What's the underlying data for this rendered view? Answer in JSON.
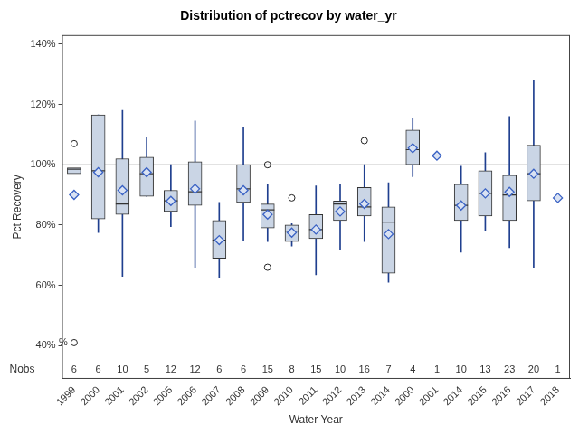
{
  "chart_data": {
    "type": "boxplot",
    "title": "Distribution of pctrecov by water_yr",
    "x_label": "Water Year",
    "y_label": "Pct Recovery",
    "categories": [
      "1999",
      "2000",
      "2001",
      "2002",
      "2005",
      "2006",
      "2007",
      "2008",
      "2009",
      "2010",
      "2011",
      "2012",
      "2013",
      "2014",
      "2000",
      "2001",
      "2014",
      "2015",
      "2016",
      "2017",
      "2018"
    ],
    "stats": {
      "q1": [
        97,
        82,
        83.5,
        89.5,
        84.5,
        86.5,
        69,
        87.5,
        79,
        74.5,
        75.5,
        81.5,
        83,
        64,
        100,
        null,
        81.5,
        83,
        81.5,
        88,
        null
      ],
      "median": [
        98.5,
        98,
        87,
        97,
        88,
        91,
        75,
        92,
        85,
        78,
        78.5,
        87,
        86,
        81,
        105,
        null,
        86.5,
        90.5,
        90,
        97,
        null
      ],
      "q3": [
        99,
        116.5,
        102,
        102.5,
        91.5,
        101,
        81.5,
        100,
        87,
        80,
        83.5,
        88,
        92.5,
        86,
        111.5,
        null,
        93.5,
        98,
        96.5,
        106.5,
        null
      ],
      "mean": [
        90,
        97.5,
        91.5,
        97.5,
        88,
        92,
        75,
        91.5,
        83.5,
        77.5,
        78.5,
        84.5,
        87,
        77,
        105.5,
        103,
        86.5,
        90.5,
        91,
        97,
        89
      ],
      "whisker_low": [
        null,
        77.5,
        63,
        89.5,
        79.5,
        66,
        62.5,
        75,
        74.5,
        73,
        63.5,
        72,
        74.5,
        61,
        96,
        null,
        71,
        78,
        72.5,
        66,
        null
      ],
      "whisker_high": [
        null,
        116.5,
        118,
        109,
        100,
        114.5,
        87.5,
        112.5,
        93.5,
        80.5,
        93,
        93.5,
        100,
        94,
        115.5,
        null,
        99.5,
        104,
        116,
        128,
        null
      ],
      "outliers": [
        [
          107,
          41
        ],
        [],
        [],
        [],
        [],
        [],
        [],
        [],
        [
          100,
          66
        ],
        [
          89
        ],
        [],
        [],
        [
          108
        ],
        [],
        [],
        [],
        [],
        [],
        [],
        [],
        []
      ]
    },
    "nobs_label": "Nobs",
    "nobs": [
      6,
      6,
      10,
      5,
      12,
      12,
      6,
      6,
      15,
      8,
      15,
      10,
      16,
      7,
      4,
      1,
      10,
      13,
      23,
      20,
      1
    ],
    "reference_line": 100,
    "annotations": [
      {
        "text": "%",
        "x": 0,
        "y": 41
      }
    ],
    "ylim": [
      29,
      143
    ],
    "yticks": [
      {
        "value": 40,
        "label": "40%"
      },
      {
        "value": 60,
        "label": "60%"
      },
      {
        "value": 80,
        "label": "80%"
      },
      {
        "value": 100,
        "label": "100%"
      },
      {
        "value": 120,
        "label": "120%"
      },
      {
        "value": 140,
        "label": "140%"
      }
    ],
    "grid": false,
    "color": "#cad5e5"
  }
}
